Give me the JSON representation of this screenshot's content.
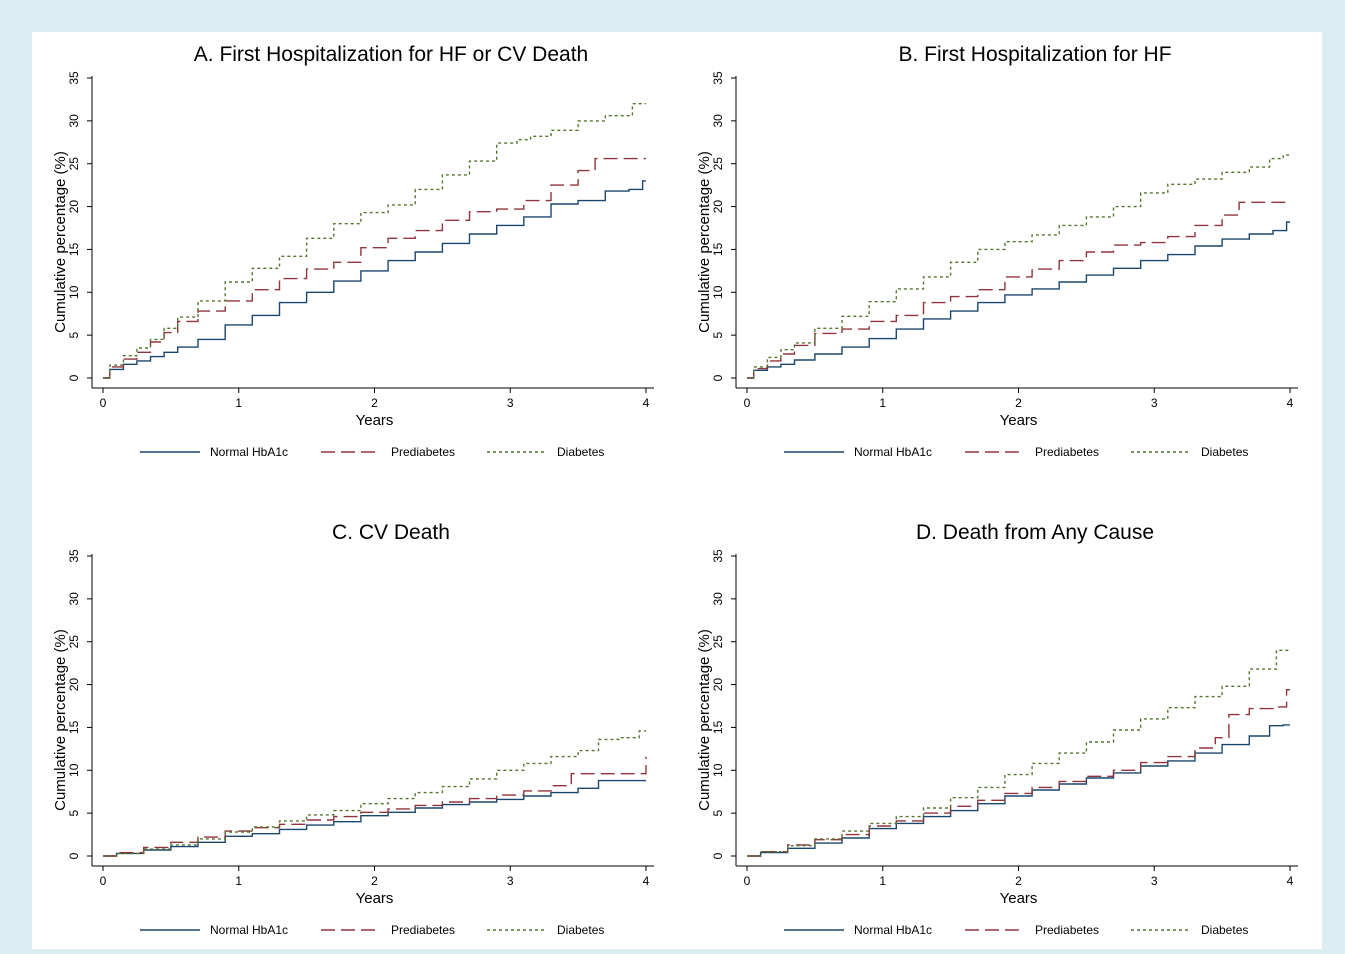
{
  "chart_data": [
    {
      "type": "line",
      "title": "A. First Hospitalization for HF or CV Death",
      "xlabel": "Years",
      "ylabel": "Cumulative percentage (%)",
      "xlim": [
        0,
        4
      ],
      "ylim": [
        0,
        35
      ],
      "xticks": [
        0,
        1,
        2,
        3,
        4
      ],
      "yticks": [
        0,
        5,
        10,
        15,
        20,
        25,
        30,
        35
      ],
      "legend": "bottom",
      "series": [
        {
          "name": "Normal HbA1c",
          "color": "#1a476f",
          "dash": "solid",
          "x": [
            0,
            0.1,
            0.2,
            0.3,
            0.4,
            0.5,
            0.6,
            0.8,
            1.0,
            1.2,
            1.4,
            1.6,
            1.8,
            2.0,
            2.2,
            2.4,
            2.6,
            2.8,
            3.0,
            3.2,
            3.4,
            3.6,
            3.8,
            3.95,
            4.0
          ],
          "y": [
            0,
            1.0,
            1.6,
            2.0,
            2.5,
            3.0,
            3.6,
            4.5,
            6.2,
            7.3,
            8.8,
            10.0,
            11.3,
            12.5,
            13.7,
            14.7,
            15.7,
            16.8,
            17.8,
            18.8,
            20.3,
            20.7,
            21.8,
            22.0,
            23.0
          ]
        },
        {
          "name": "Prediabetes",
          "color": "#90353b",
          "dash": "long",
          "x": [
            0,
            0.1,
            0.2,
            0.3,
            0.4,
            0.5,
            0.6,
            0.8,
            1.0,
            1.2,
            1.4,
            1.6,
            1.8,
            2.0,
            2.2,
            2.4,
            2.6,
            2.8,
            3.0,
            3.2,
            3.4,
            3.6,
            3.65,
            4.0
          ],
          "y": [
            0,
            1.3,
            2.2,
            3.0,
            4.2,
            5.3,
            6.6,
            7.8,
            9.0,
            10.3,
            11.6,
            12.7,
            13.5,
            15.2,
            16.3,
            17.2,
            18.4,
            19.4,
            19.7,
            20.7,
            22.5,
            24.2,
            25.6,
            25.6
          ]
        },
        {
          "name": "Diabetes",
          "color": "#55752f",
          "dash": "dot",
          "x": [
            0,
            0.1,
            0.2,
            0.3,
            0.4,
            0.5,
            0.6,
            0.8,
            1.0,
            1.2,
            1.4,
            1.6,
            1.8,
            2.0,
            2.2,
            2.4,
            2.6,
            2.8,
            3.0,
            3.1,
            3.2,
            3.4,
            3.6,
            3.8,
            4.0
          ],
          "y": [
            0,
            1.5,
            2.6,
            3.5,
            4.5,
            5.8,
            7.1,
            9.0,
            11.2,
            12.8,
            14.2,
            16.3,
            18.0,
            19.3,
            20.2,
            22.0,
            23.7,
            25.3,
            27.4,
            27.8,
            28.2,
            28.9,
            30.0,
            30.6,
            32.0
          ]
        }
      ]
    },
    {
      "type": "line",
      "title": "B. First Hospitalization for HF",
      "xlabel": "Years",
      "ylabel": "Cumulative percentage (%)",
      "xlim": [
        0,
        4
      ],
      "ylim": [
        0,
        35
      ],
      "xticks": [
        0,
        1,
        2,
        3,
        4
      ],
      "yticks": [
        0,
        5,
        10,
        15,
        20,
        25,
        30,
        35
      ],
      "legend": "bottom",
      "series": [
        {
          "name": "Normal HbA1c",
          "color": "#1a476f",
          "dash": "solid",
          "x": [
            0,
            0.1,
            0.2,
            0.3,
            0.4,
            0.6,
            0.8,
            1.0,
            1.2,
            1.4,
            1.6,
            1.8,
            2.0,
            2.2,
            2.4,
            2.6,
            2.8,
            3.0,
            3.2,
            3.4,
            3.6,
            3.8,
            3.95,
            4.0
          ],
          "y": [
            0,
            0.9,
            1.3,
            1.6,
            2.1,
            2.8,
            3.6,
            4.6,
            5.7,
            6.9,
            7.8,
            8.8,
            9.7,
            10.4,
            11.2,
            12.0,
            12.8,
            13.7,
            14.4,
            15.4,
            16.2,
            16.8,
            17.2,
            18.2
          ]
        },
        {
          "name": "Prediabetes",
          "color": "#90353b",
          "dash": "long",
          "x": [
            0,
            0.1,
            0.2,
            0.3,
            0.4,
            0.6,
            0.8,
            1.0,
            1.2,
            1.4,
            1.6,
            1.8,
            2.0,
            2.2,
            2.4,
            2.6,
            2.8,
            3.0,
            3.2,
            3.4,
            3.6,
            3.65,
            4.0
          ],
          "y": [
            0,
            1.1,
            2.0,
            2.8,
            3.8,
            5.2,
            5.7,
            6.6,
            7.3,
            8.8,
            9.5,
            10.3,
            11.8,
            12.7,
            13.7,
            14.7,
            15.5,
            15.8,
            16.5,
            17.8,
            19.0,
            20.5,
            20.5
          ]
        },
        {
          "name": "Diabetes",
          "color": "#55752f",
          "dash": "dot",
          "x": [
            0,
            0.1,
            0.2,
            0.3,
            0.4,
            0.6,
            0.8,
            1.0,
            1.2,
            1.4,
            1.6,
            1.8,
            2.0,
            2.2,
            2.4,
            2.6,
            2.8,
            3.0,
            3.2,
            3.4,
            3.6,
            3.8,
            3.9,
            4.0
          ],
          "y": [
            0,
            1.3,
            2.4,
            3.3,
            4.1,
            5.8,
            7.2,
            8.9,
            10.4,
            11.8,
            13.5,
            15.0,
            15.9,
            16.7,
            17.8,
            18.8,
            20.0,
            21.6,
            22.6,
            23.2,
            24.0,
            24.6,
            25.6,
            26.0
          ]
        }
      ]
    },
    {
      "type": "line",
      "title": "C. CV Death",
      "xlabel": "Years",
      "ylabel": "Cumulative percentage (%)",
      "xlim": [
        0,
        4
      ],
      "ylim": [
        0,
        35
      ],
      "xticks": [
        0,
        1,
        2,
        3,
        4
      ],
      "yticks": [
        0,
        5,
        10,
        15,
        20,
        25,
        30,
        35
      ],
      "legend": "bottom",
      "series": [
        {
          "name": "Normal HbA1c",
          "color": "#1a476f",
          "dash": "solid",
          "x": [
            0,
            0.2,
            0.4,
            0.6,
            0.8,
            1.0,
            1.2,
            1.4,
            1.6,
            1.8,
            2.0,
            2.2,
            2.4,
            2.6,
            2.8,
            3.0,
            3.2,
            3.4,
            3.6,
            3.7,
            4.0
          ],
          "y": [
            0,
            0.3,
            0.7,
            1.1,
            1.6,
            2.3,
            2.6,
            3.1,
            3.6,
            4.0,
            4.7,
            5.1,
            5.6,
            6.0,
            6.3,
            6.6,
            7.0,
            7.4,
            7.9,
            8.8,
            8.8
          ]
        },
        {
          "name": "Prediabetes",
          "color": "#90353b",
          "dash": "long",
          "x": [
            0,
            0.2,
            0.4,
            0.6,
            0.8,
            1.0,
            1.2,
            1.4,
            1.6,
            1.8,
            2.0,
            2.2,
            2.4,
            2.6,
            2.8,
            3.0,
            3.2,
            3.4,
            3.5,
            4.0,
            4.0
          ],
          "y": [
            0,
            0.4,
            1.0,
            1.6,
            2.2,
            2.9,
            3.3,
            3.7,
            4.2,
            4.6,
            5.1,
            5.5,
            5.9,
            6.3,
            6.7,
            7.1,
            7.6,
            8.2,
            9.6,
            9.6,
            11.6
          ]
        },
        {
          "name": "Diabetes",
          "color": "#55752f",
          "dash": "dot",
          "x": [
            0,
            0.2,
            0.4,
            0.6,
            0.8,
            1.0,
            1.2,
            1.4,
            1.6,
            1.8,
            2.0,
            2.2,
            2.4,
            2.6,
            2.8,
            3.0,
            3.2,
            3.4,
            3.6,
            3.7,
            3.9,
            4.0
          ],
          "y": [
            0,
            0.3,
            0.8,
            1.3,
            2.0,
            2.8,
            3.4,
            4.1,
            4.8,
            5.3,
            6.1,
            6.7,
            7.4,
            8.1,
            9.0,
            10.0,
            10.8,
            11.6,
            12.3,
            13.6,
            13.8,
            14.6
          ]
        }
      ]
    },
    {
      "type": "line",
      "title": "D. Death from Any Cause",
      "xlabel": "Years",
      "ylabel": "Cumulative percentage (%)",
      "xlim": [
        0,
        4
      ],
      "ylim": [
        0,
        35
      ],
      "xticks": [
        0,
        1,
        2,
        3,
        4
      ],
      "yticks": [
        0,
        5,
        10,
        15,
        20,
        25,
        30,
        35
      ],
      "legend": "bottom",
      "series": [
        {
          "name": "Normal HbA1c",
          "color": "#1a476f",
          "dash": "solid",
          "x": [
            0,
            0.2,
            0.4,
            0.6,
            0.8,
            1.0,
            1.2,
            1.4,
            1.6,
            1.8,
            2.0,
            2.2,
            2.4,
            2.6,
            2.8,
            3.0,
            3.2,
            3.4,
            3.6,
            3.8,
            3.9,
            4.0
          ],
          "y": [
            0,
            0.4,
            0.9,
            1.5,
            2.1,
            3.2,
            3.8,
            4.6,
            5.3,
            6.1,
            7.0,
            7.7,
            8.4,
            9.1,
            9.7,
            10.5,
            11.1,
            12.0,
            13.0,
            14.0,
            15.2,
            15.3
          ]
        },
        {
          "name": "Prediabetes",
          "color": "#90353b",
          "dash": "long",
          "x": [
            0,
            0.2,
            0.4,
            0.6,
            0.8,
            1.0,
            1.2,
            1.4,
            1.6,
            1.8,
            2.0,
            2.2,
            2.4,
            2.6,
            2.8,
            3.0,
            3.2,
            3.4,
            3.5,
            3.6,
            3.8,
            3.95,
            4.0
          ],
          "y": [
            0,
            0.5,
            1.3,
            1.9,
            2.5,
            3.5,
            4.1,
            5.0,
            5.8,
            6.5,
            7.3,
            8.0,
            8.7,
            9.3,
            10.0,
            10.9,
            11.6,
            12.6,
            13.8,
            16.5,
            17.2,
            17.4,
            19.4
          ]
        },
        {
          "name": "Diabetes",
          "color": "#55752f",
          "dash": "dot",
          "x": [
            0,
            0.2,
            0.4,
            0.6,
            0.8,
            1.0,
            1.2,
            1.4,
            1.6,
            1.8,
            2.0,
            2.2,
            2.4,
            2.6,
            2.8,
            3.0,
            3.2,
            3.4,
            3.6,
            3.8,
            4.0
          ],
          "y": [
            0,
            0.5,
            1.2,
            2.0,
            2.9,
            3.8,
            4.6,
            5.6,
            6.8,
            8.0,
            9.5,
            10.8,
            12.0,
            13.3,
            14.7,
            16.0,
            17.3,
            18.6,
            19.8,
            21.8,
            24.0
          ]
        }
      ]
    }
  ]
}
